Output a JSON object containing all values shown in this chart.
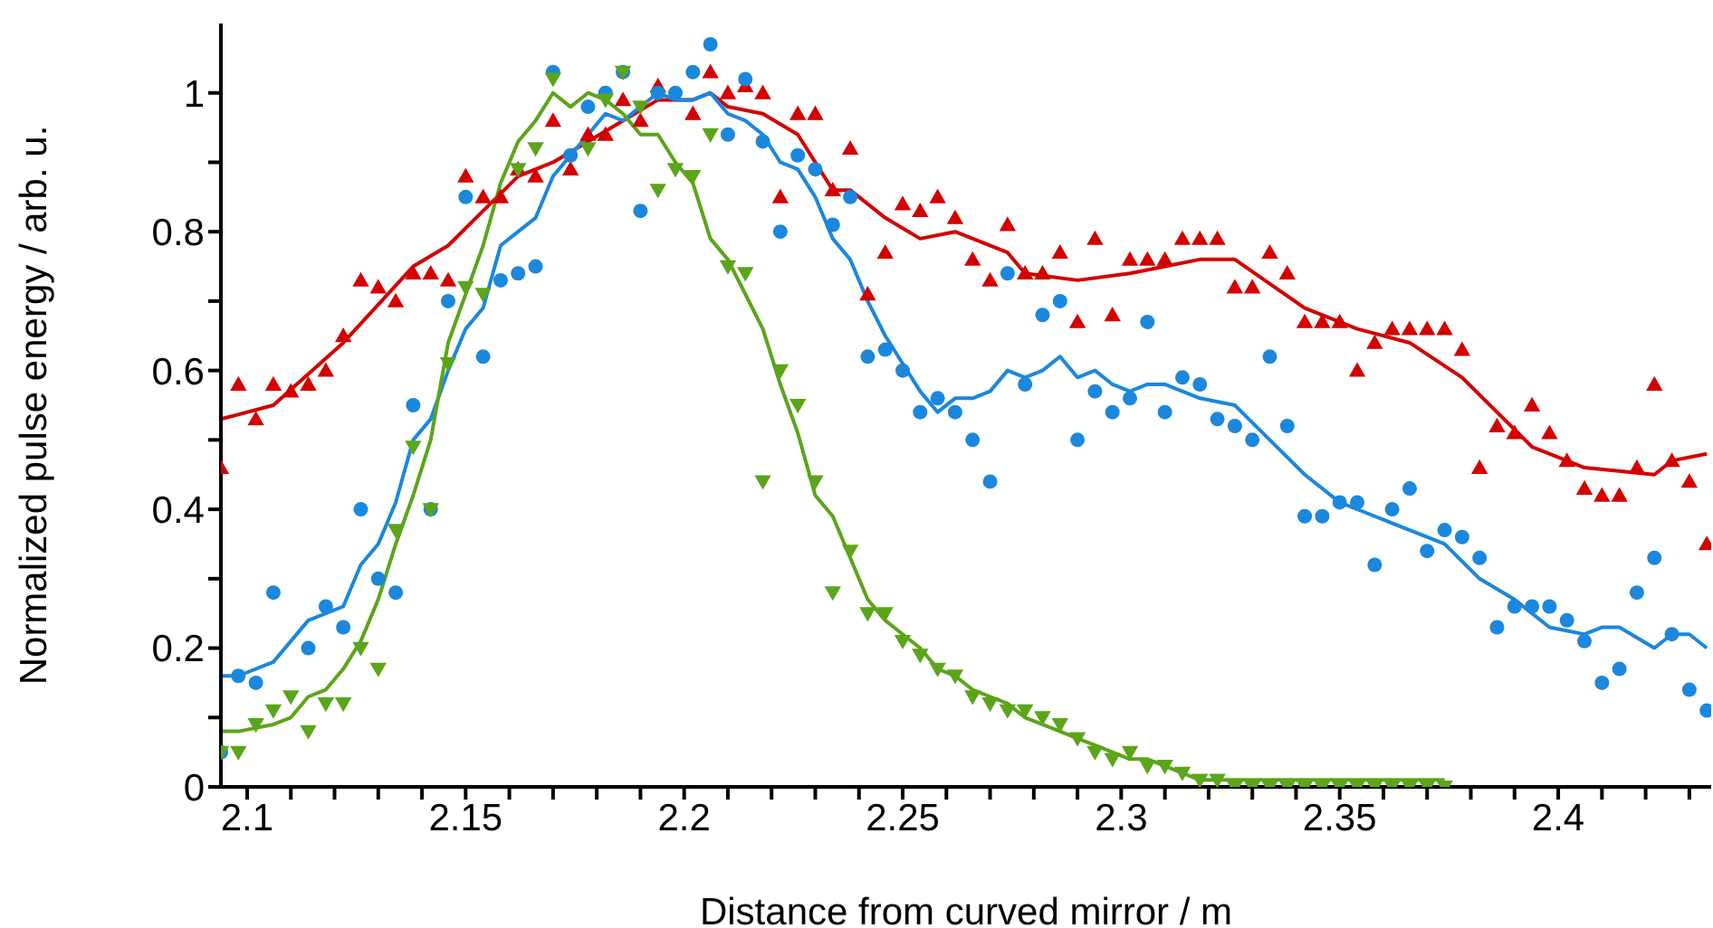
{
  "chart_data": {
    "type": "scatter",
    "xlabel": "Distance from curved mirror / m",
    "ylabel": "Normalized pulse energy / arb. u.",
    "xlim": [
      2.094,
      2.435
    ],
    "ylim": [
      0,
      1.1
    ],
    "grid": false,
    "xticks": [
      2.1,
      {
        "value": 2.11,
        "label": null
      },
      {
        "value": 2.12,
        "label": null
      },
      {
        "value": 2.13,
        "label": null
      },
      {
        "value": 2.14,
        "label": null
      },
      2.15,
      {
        "value": 2.16,
        "label": null
      },
      {
        "value": 2.17,
        "label": null
      },
      {
        "value": 2.18,
        "label": null
      },
      {
        "value": 2.19,
        "label": null
      },
      2.2,
      {
        "value": 2.21,
        "label": null
      },
      {
        "value": 2.22,
        "label": null
      },
      {
        "value": 2.23,
        "label": null
      },
      {
        "value": 2.24,
        "label": null
      },
      2.25,
      {
        "value": 2.26,
        "label": null
      },
      {
        "value": 2.27,
        "label": null
      },
      {
        "value": 2.28,
        "label": null
      },
      {
        "value": 2.29,
        "label": null
      },
      2.3,
      {
        "value": 2.31,
        "label": null
      },
      {
        "value": 2.32,
        "label": null
      },
      {
        "value": 2.33,
        "label": null
      },
      {
        "value": 2.34,
        "label": null
      },
      2.35,
      {
        "value": 2.36,
        "label": null
      },
      {
        "value": 2.37,
        "label": null
      },
      {
        "value": 2.38,
        "label": null
      },
      {
        "value": 2.39,
        "label": null
      },
      2.4,
      {
        "value": 2.41,
        "label": null
      },
      {
        "value": 2.42,
        "label": null
      },
      {
        "value": 2.43,
        "label": null
      }
    ],
    "yticks": [
      0,
      {
        "value": 0.1,
        "label": null
      },
      0.2,
      {
        "value": 0.3,
        "label": null
      },
      0.4,
      {
        "value": 0.5,
        "label": null
      },
      0.6,
      {
        "value": 0.7,
        "label": null
      },
      0.8,
      {
        "value": 0.9,
        "label": null
      },
      1
    ],
    "x": [
      2.094,
      2.098,
      2.102,
      2.106,
      2.11,
      2.114,
      2.118,
      2.122,
      2.126,
      2.13,
      2.134,
      2.138,
      2.142,
      2.146,
      2.15,
      2.154,
      2.158,
      2.162,
      2.166,
      2.17,
      2.174,
      2.178,
      2.182,
      2.186,
      2.19,
      2.194,
      2.198,
      2.202,
      2.206,
      2.21,
      2.214,
      2.218,
      2.222,
      2.226,
      2.23,
      2.234,
      2.238,
      2.242,
      2.246,
      2.25,
      2.254,
      2.258,
      2.262,
      2.266,
      2.27,
      2.274,
      2.278,
      2.282,
      2.286,
      2.29,
      2.294,
      2.298,
      2.302,
      2.306,
      2.31,
      2.314,
      2.318,
      2.322,
      2.326,
      2.33,
      2.334,
      2.338,
      2.342,
      2.346,
      2.35,
      2.354,
      2.358,
      2.362,
      2.366,
      2.37,
      2.374,
      2.378,
      2.382,
      2.386,
      2.39,
      2.394,
      2.398,
      2.402,
      2.406,
      2.41,
      2.414,
      2.418,
      2.422,
      2.426,
      2.43,
      2.434
    ],
    "series": [
      {
        "color": "#d40000",
        "marker": "triangle",
        "values": [
          0.46,
          0.58,
          0.53,
          0.58,
          0.57,
          0.58,
          0.6,
          0.65,
          0.73,
          0.72,
          0.7,
          0.74,
          0.74,
          0.73,
          0.88,
          0.85,
          0.85,
          0.89,
          0.88,
          0.96,
          0.89,
          0.94,
          0.94,
          0.99,
          0.96,
          1.01,
          null,
          0.97,
          1.03,
          1.0,
          1.01,
          1.0,
          0.85,
          0.97,
          0.97,
          0.86,
          0.92,
          0.71,
          0.77,
          0.84,
          0.83,
          0.85,
          0.82,
          0.76,
          0.73,
          0.81,
          0.74,
          0.74,
          0.77,
          0.67,
          0.79,
          0.68,
          0.76,
          0.76,
          0.76,
          0.79,
          0.79,
          0.79,
          0.72,
          0.72,
          0.77,
          0.74,
          0.67,
          0.67,
          0.67,
          0.6,
          0.64,
          0.66,
          0.66,
          0.66,
          0.66,
          0.63,
          0.46,
          0.52,
          0.51,
          0.55,
          0.51,
          0.47,
          0.43,
          0.42,
          0.42,
          0.46,
          0.58,
          0.47,
          0.44,
          0.35
        ]
      },
      {
        "color": "#1b87dd",
        "marker": "circle",
        "values": [
          0.05,
          0.16,
          0.15,
          0.28,
          null,
          0.2,
          0.26,
          0.23,
          0.4,
          0.3,
          0.28,
          0.55,
          0.4,
          0.7,
          0.85,
          0.62,
          0.73,
          0.74,
          0.75,
          1.03,
          0.91,
          0.98,
          1.0,
          1.03,
          0.83,
          1.0,
          1.0,
          1.03,
          1.07,
          0.94,
          1.02,
          0.93,
          0.8,
          0.91,
          0.89,
          0.81,
          0.85,
          0.62,
          0.63,
          0.6,
          0.54,
          0.56,
          0.54,
          0.5,
          0.44,
          0.74,
          0.58,
          0.68,
          0.7,
          0.5,
          0.57,
          0.54,
          0.56,
          0.67,
          0.54,
          0.59,
          0.58,
          0.53,
          0.52,
          0.5,
          0.62,
          0.52,
          0.39,
          0.39,
          0.41,
          0.41,
          0.32,
          0.4,
          0.43,
          0.34,
          0.37,
          0.36,
          0.33,
          0.23,
          0.26,
          0.26,
          0.26,
          0.24,
          0.21,
          0.15,
          0.17,
          0.28,
          0.33,
          0.22,
          0.14,
          0.11
        ]
      },
      {
        "color": "#5ba51a",
        "marker": "triangle-down",
        "values": [
          0.05,
          0.05,
          0.09,
          0.11,
          0.13,
          0.08,
          0.12,
          0.12,
          0.2,
          0.17,
          0.37,
          0.49,
          0.4,
          0.61,
          0.72,
          0.71,
          null,
          0.89,
          0.92,
          1.02,
          null,
          0.92,
          0.99,
          1.03,
          0.98,
          0.86,
          0.89,
          0.88,
          0.94,
          0.75,
          0.74,
          0.44,
          0.6,
          0.55,
          0.44,
          0.28,
          0.34,
          0.25,
          0.25,
          0.21,
          0.19,
          0.17,
          0.16,
          0.13,
          0.12,
          0.11,
          0.11,
          0.1,
          0.09,
          0.07,
          0.05,
          0.04,
          0.05,
          0.03,
          0.03,
          0.02,
          0.01,
          0.01,
          0,
          0,
          0,
          0,
          0,
          0,
          0,
          0,
          0,
          0,
          0,
          0,
          0,
          null,
          null,
          null,
          null,
          null,
          null,
          null,
          null,
          null,
          null,
          null,
          null,
          null,
          null,
          null
        ]
      },
      {
        "type": "line",
        "color": "#d40000",
        "marker": "none",
        "x": [
          2.094,
          2.106,
          2.122,
          2.138,
          2.146,
          2.154,
          2.162,
          2.17,
          2.178,
          2.186,
          2.194,
          2.202,
          2.206,
          2.21,
          2.218,
          2.226,
          2.234,
          2.238,
          2.246,
          2.254,
          2.262,
          2.274,
          2.278,
          2.29,
          2.302,
          2.318,
          2.326,
          2.342,
          2.354,
          2.366,
          2.378,
          2.394,
          2.406,
          2.422,
          2.426,
          2.434
        ],
        "values": [
          0.53,
          0.55,
          0.64,
          0.75,
          0.78,
          0.83,
          0.88,
          0.9,
          0.93,
          0.96,
          0.99,
          0.99,
          1.0,
          0.98,
          0.97,
          0.94,
          0.86,
          0.86,
          0.82,
          0.79,
          0.8,
          0.77,
          0.74,
          0.73,
          0.74,
          0.76,
          0.76,
          0.69,
          0.66,
          0.64,
          0.59,
          0.49,
          0.46,
          0.45,
          0.47,
          0.48
        ]
      },
      {
        "type": "line",
        "color": "#1b87dd",
        "marker": "none",
        "x": [
          2.094,
          2.098,
          2.106,
          2.114,
          2.122,
          2.126,
          2.13,
          2.134,
          2.138,
          2.142,
          2.146,
          2.15,
          2.154,
          2.158,
          2.162,
          2.166,
          2.17,
          2.174,
          2.178,
          2.182,
          2.186,
          2.19,
          2.194,
          2.198,
          2.202,
          2.206,
          2.21,
          2.214,
          2.218,
          2.222,
          2.226,
          2.23,
          2.234,
          2.238,
          2.242,
          2.246,
          2.25,
          2.254,
          2.258,
          2.262,
          2.266,
          2.27,
          2.274,
          2.278,
          2.282,
          2.286,
          2.29,
          2.294,
          2.298,
          2.302,
          2.306,
          2.31,
          2.314,
          2.318,
          2.326,
          2.334,
          2.342,
          2.35,
          2.358,
          2.366,
          2.374,
          2.382,
          2.39,
          2.398,
          2.406,
          2.41,
          2.414,
          2.422,
          2.426,
          2.43,
          2.434
        ],
        "values": [
          0.16,
          0.16,
          0.18,
          0.24,
          0.26,
          0.32,
          0.35,
          0.41,
          0.5,
          0.53,
          0.6,
          0.66,
          0.69,
          0.78,
          0.8,
          0.82,
          0.88,
          0.91,
          0.94,
          0.97,
          0.96,
          0.98,
          1.0,
          0.99,
          0.99,
          1.0,
          0.97,
          0.96,
          0.94,
          0.9,
          0.89,
          0.85,
          0.79,
          0.76,
          0.7,
          0.65,
          0.61,
          0.57,
          0.54,
          0.56,
          0.56,
          0.57,
          0.6,
          0.59,
          0.6,
          0.62,
          0.59,
          0.6,
          0.58,
          0.57,
          0.58,
          0.58,
          0.57,
          0.56,
          0.55,
          0.5,
          0.45,
          0.41,
          0.39,
          0.37,
          0.35,
          0.3,
          0.27,
          0.23,
          0.22,
          0.23,
          0.23,
          0.2,
          0.22,
          0.22,
          0.2
        ]
      },
      {
        "type": "line",
        "color": "#5ba51a",
        "marker": "none",
        "x": [
          2.094,
          2.098,
          2.106,
          2.11,
          2.114,
          2.118,
          2.122,
          2.126,
          2.13,
          2.134,
          2.138,
          2.142,
          2.146,
          2.15,
          2.154,
          2.158,
          2.162,
          2.166,
          2.17,
          2.174,
          2.178,
          2.182,
          2.186,
          2.19,
          2.194,
          2.198,
          2.202,
          2.206,
          2.21,
          2.214,
          2.218,
          2.222,
          2.226,
          2.23,
          2.234,
          2.238,
          2.242,
          2.246,
          2.25,
          2.254,
          2.258,
          2.262,
          2.266,
          2.27,
          2.274,
          2.278,
          2.282,
          2.286,
          2.29,
          2.294,
          2.298,
          2.302,
          2.306,
          2.31,
          2.314,
          2.318,
          2.326,
          2.334,
          2.354,
          2.374
        ],
        "values": [
          0.08,
          0.08,
          0.09,
          0.1,
          0.13,
          0.14,
          0.17,
          0.21,
          0.27,
          0.35,
          0.42,
          0.5,
          0.64,
          0.71,
          0.78,
          0.87,
          0.93,
          0.96,
          1.0,
          0.98,
          1.0,
          0.99,
          0.97,
          0.94,
          0.94,
          0.9,
          0.87,
          0.79,
          0.76,
          0.71,
          0.66,
          0.58,
          0.51,
          0.42,
          0.39,
          0.33,
          0.27,
          0.24,
          0.22,
          0.2,
          0.17,
          0.16,
          0.14,
          0.13,
          0.12,
          0.1,
          0.09,
          0.08,
          0.07,
          0.06,
          0.05,
          0.04,
          0.04,
          0.03,
          0.02,
          0.01,
          0.01,
          0.01,
          0.01,
          0.01
        ]
      }
    ]
  }
}
